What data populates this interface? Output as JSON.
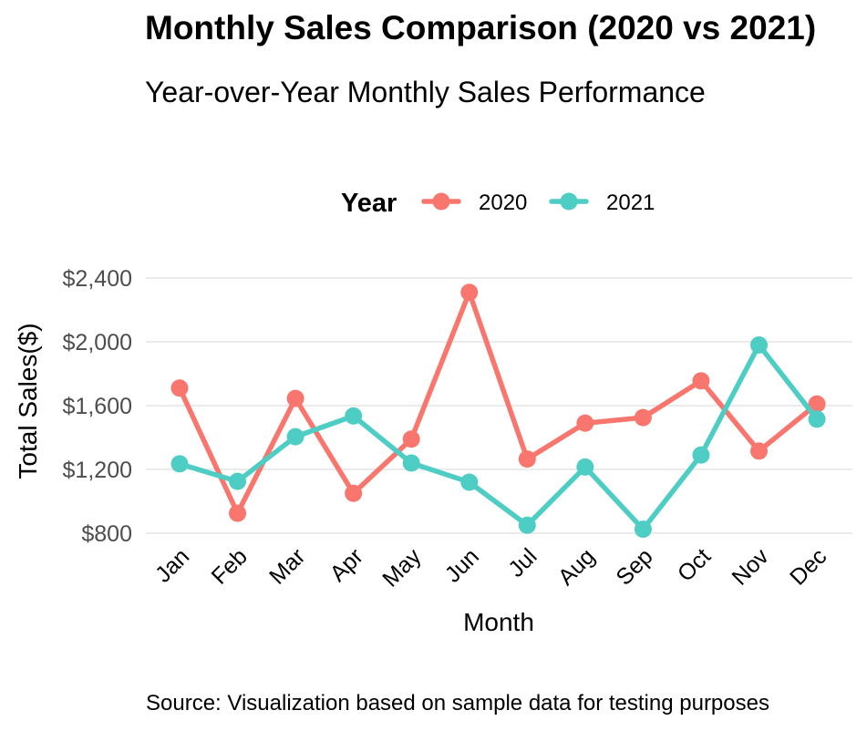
{
  "chart_data": {
    "type": "line",
    "title": "Monthly Sales Comparison (2020 vs 2021)",
    "subtitle": "Year-over-Year Monthly Sales Performance",
    "caption": "Source: Visualization based on sample data for testing purposes",
    "xlabel": "Month",
    "ylabel": "Total Sales($)",
    "legend_title": "Year",
    "legend_position": "top",
    "categories": [
      "Jan",
      "Feb",
      "Mar",
      "Apr",
      "May",
      "Jun",
      "Jul",
      "Aug",
      "Sep",
      "Oct",
      "Nov",
      "Dec"
    ],
    "y_ticks": [
      "$800",
      "$1,200",
      "$1,600",
      "$2,000",
      "$2,400"
    ],
    "y_tick_values": [
      800,
      1200,
      1600,
      2000,
      2400
    ],
    "ylim": [
      800,
      2400
    ],
    "grid": true,
    "series": [
      {
        "name": "2020",
        "color": "#F8766D",
        "values": [
          1710,
          925,
          1645,
          1050,
          1390,
          2310,
          1265,
          1490,
          1525,
          1755,
          1315,
          1610
        ]
      },
      {
        "name": "2021",
        "color": "#4ECDC4",
        "values": [
          1235,
          1125,
          1405,
          1535,
          1240,
          1120,
          850,
          1215,
          825,
          1290,
          1980,
          1515
        ]
      }
    ]
  }
}
